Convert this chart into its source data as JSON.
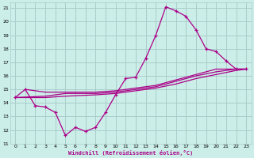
{
  "xlabel": "Windchill (Refroidissement éolien,°C)",
  "bg_color": "#cceee8",
  "grid_color": "#aacccc",
  "line_color": "#aa0088",
  "xlim": [
    -0.5,
    23.5
  ],
  "ylim": [
    11,
    21.4
  ],
  "xticks": [
    0,
    1,
    2,
    3,
    4,
    5,
    6,
    7,
    8,
    9,
    10,
    11,
    12,
    13,
    14,
    15,
    16,
    17,
    18,
    19,
    20,
    21,
    22,
    23
  ],
  "yticks": [
    11,
    12,
    13,
    14,
    15,
    16,
    17,
    18,
    19,
    20,
    21
  ],
  "series1": [
    [
      0,
      14.4
    ],
    [
      1,
      15.0
    ],
    [
      2,
      13.8
    ],
    [
      3,
      13.7
    ],
    [
      4,
      13.3
    ],
    [
      5,
      11.6
    ],
    [
      6,
      12.2
    ],
    [
      7,
      11.9
    ],
    [
      8,
      12.2
    ],
    [
      9,
      13.3
    ],
    [
      10,
      14.6
    ],
    [
      11,
      15.8
    ],
    [
      12,
      15.9
    ],
    [
      13,
      17.3
    ],
    [
      14,
      19.0
    ],
    [
      15,
      21.1
    ],
    [
      16,
      20.8
    ],
    [
      17,
      20.4
    ],
    [
      18,
      19.4
    ],
    [
      19,
      18.0
    ],
    [
      20,
      17.8
    ],
    [
      21,
      17.1
    ],
    [
      22,
      16.5
    ],
    [
      23,
      16.5
    ]
  ],
  "series2": [
    [
      0,
      14.4
    ],
    [
      3,
      14.5
    ],
    [
      5,
      14.7
    ],
    [
      8,
      14.7
    ],
    [
      10,
      14.8
    ],
    [
      12,
      15.0
    ],
    [
      14,
      15.2
    ],
    [
      16,
      15.6
    ],
    [
      18,
      16.0
    ],
    [
      20,
      16.3
    ],
    [
      22,
      16.5
    ],
    [
      23,
      16.5
    ]
  ],
  "series3": [
    [
      0,
      14.4
    ],
    [
      3,
      14.4
    ],
    [
      5,
      14.5
    ],
    [
      8,
      14.6
    ],
    [
      10,
      14.7
    ],
    [
      12,
      14.9
    ],
    [
      14,
      15.1
    ],
    [
      16,
      15.4
    ],
    [
      18,
      15.8
    ],
    [
      20,
      16.1
    ],
    [
      22,
      16.4
    ],
    [
      23,
      16.5
    ]
  ],
  "series4": [
    [
      1,
      15.0
    ],
    [
      3,
      14.8
    ],
    [
      5,
      14.8
    ],
    [
      8,
      14.8
    ],
    [
      10,
      14.9
    ],
    [
      12,
      15.1
    ],
    [
      14,
      15.3
    ],
    [
      16,
      15.7
    ],
    [
      18,
      16.1
    ],
    [
      20,
      16.5
    ],
    [
      22,
      16.5
    ],
    [
      23,
      16.5
    ]
  ]
}
